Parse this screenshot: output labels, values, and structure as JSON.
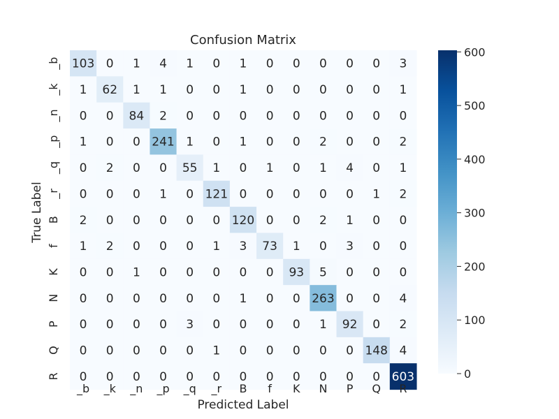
{
  "chart_data": {
    "type": "heatmap",
    "title": "Confusion Matrix",
    "xlabel": "Predicted Label",
    "ylabel": "True Label",
    "x_categories": [
      "_b",
      "_k",
      "_n",
      "_p",
      "_q",
      "_r",
      "B",
      "f",
      "K",
      "N",
      "P",
      "Q",
      "R"
    ],
    "y_categories": [
      "_b",
      "_k",
      "_n",
      "_p",
      "_q",
      "_r",
      "B",
      "f",
      "K",
      "N",
      "P",
      "Q",
      "R"
    ],
    "values": [
      [
        103,
        0,
        1,
        4,
        1,
        0,
        1,
        0,
        0,
        0,
        0,
        0,
        3
      ],
      [
        1,
        62,
        1,
        1,
        0,
        0,
        1,
        0,
        0,
        0,
        0,
        0,
        1
      ],
      [
        0,
        0,
        84,
        2,
        0,
        0,
        0,
        0,
        0,
        0,
        0,
        0,
        0
      ],
      [
        1,
        0,
        0,
        241,
        1,
        0,
        1,
        0,
        0,
        2,
        0,
        0,
        2
      ],
      [
        0,
        2,
        0,
        0,
        55,
        1,
        0,
        1,
        0,
        1,
        4,
        0,
        1
      ],
      [
        0,
        0,
        0,
        1,
        0,
        121,
        0,
        0,
        0,
        0,
        0,
        1,
        2
      ],
      [
        2,
        0,
        0,
        0,
        0,
        0,
        120,
        0,
        0,
        2,
        1,
        0,
        0
      ],
      [
        1,
        2,
        0,
        0,
        0,
        1,
        3,
        73,
        1,
        0,
        3,
        0,
        0
      ],
      [
        0,
        0,
        1,
        0,
        0,
        0,
        0,
        0,
        93,
        5,
        0,
        0,
        0
      ],
      [
        0,
        0,
        0,
        0,
        0,
        0,
        1,
        0,
        0,
        263,
        0,
        0,
        4
      ],
      [
        0,
        0,
        0,
        0,
        3,
        0,
        0,
        0,
        0,
        1,
        92,
        0,
        2
      ],
      [
        0,
        0,
        0,
        0,
        0,
        1,
        0,
        0,
        0,
        0,
        0,
        148,
        4
      ],
      [
        0,
        0,
        0,
        0,
        0,
        0,
        0,
        0,
        0,
        0,
        0,
        0,
        603
      ]
    ],
    "colorbar": {
      "min": 0,
      "max": 603,
      "ticks": [
        0,
        100,
        200,
        300,
        400,
        500,
        600
      ],
      "colormap": "Blues"
    },
    "grid": false
  }
}
